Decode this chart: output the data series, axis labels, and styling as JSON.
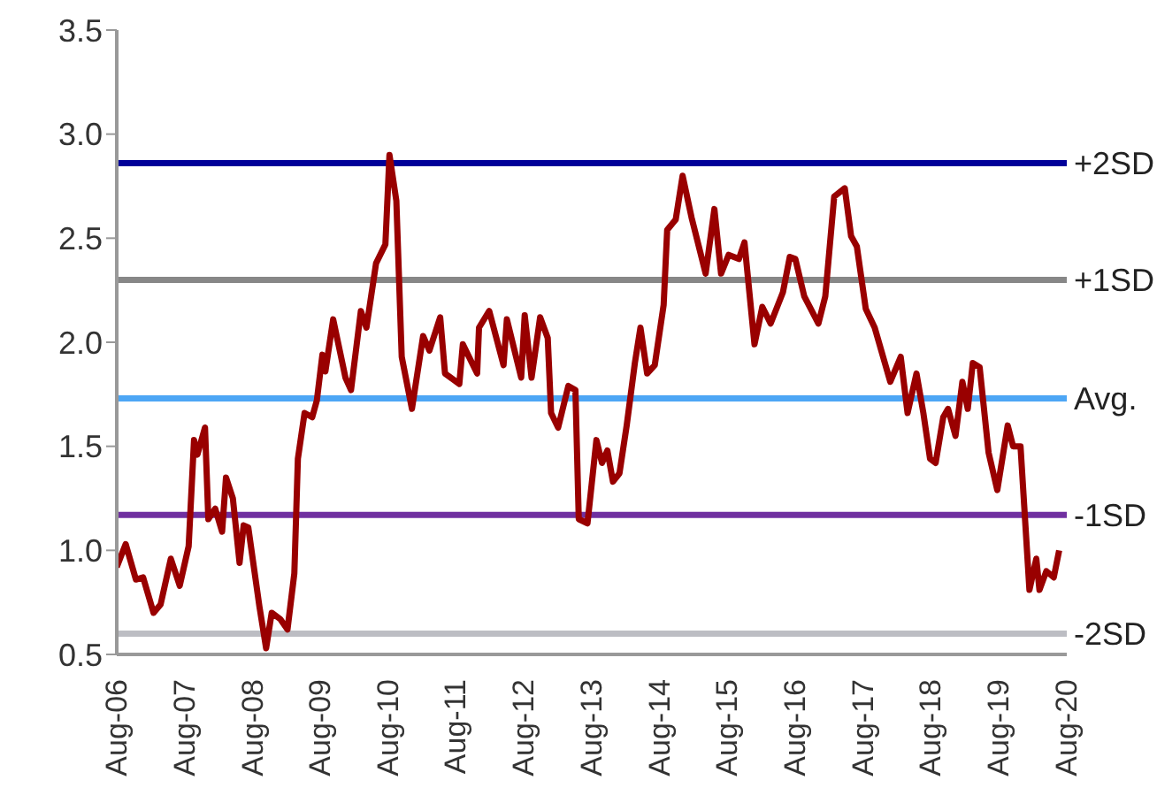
{
  "chart_data": {
    "type": "line",
    "x": [
      "2006-08-01",
      "2006-09-18",
      "2006-11-12",
      "2006-12-21",
      "2007-02-15",
      "2007-03-25",
      "2007-05-19",
      "2007-07-06",
      "2007-08-23",
      "2007-09-21",
      "2007-10-09",
      "2007-11-19",
      "2007-12-07",
      "2008-01-13",
      "2008-02-19",
      "2008-03-11",
      "2008-04-17",
      "2008-05-23",
      "2008-06-14",
      "2008-07-09",
      "2008-09-07",
      "2008-10-13",
      "2008-11-12",
      "2008-12-28",
      "2009-02-05",
      "2009-03-14",
      "2009-04-02",
      "2009-05-08",
      "2009-06-18",
      "2009-07-13",
      "2009-08-12",
      "2009-08-28",
      "2009-10-09",
      "2009-12-14",
      "2010-01-13",
      "2010-03-07",
      "2010-04-06",
      "2010-05-28",
      "2010-07-17",
      "2010-08-08",
      "2010-09-14",
      "2010-10-13",
      "2010-12-07",
      "2011-02-05",
      "2011-03-11",
      "2011-05-08",
      "2011-06-03",
      "2011-08-19",
      "2011-09-07",
      "2011-11-23",
      "2011-12-03",
      "2012-01-27",
      "2012-04-13",
      "2012-05-01",
      "2012-07-17",
      "2012-08-05",
      "2012-09-11",
      "2012-10-27",
      "2012-12-07",
      "2012-12-25",
      "2013-02-01",
      "2013-03-28",
      "2013-05-05",
      "2013-05-23",
      "2013-07-09",
      "2013-08-26",
      "2013-09-25",
      "2013-10-24",
      "2013-11-23",
      "2013-12-28",
      "2014-02-05",
      "2014-03-21",
      "2014-04-20",
      "2014-05-26",
      "2014-07-06",
      "2014-08-23",
      "2014-09-11",
      "2014-10-27",
      "2014-12-03",
      "2015-01-20",
      "2015-04-06",
      "2015-05-23",
      "2015-06-28",
      "2015-08-08",
      "2015-10-02",
      "2015-11-01",
      "2015-12-25",
      "2016-02-05",
      "2016-03-21",
      "2016-05-26",
      "2016-07-02",
      "2016-08-01",
      "2016-09-18",
      "2016-12-03",
      "2017-01-09",
      "2017-02-26",
      "2017-04-24",
      "2017-05-28",
      "2017-06-28",
      "2017-08-15",
      "2017-10-02",
      "2017-12-25",
      "2018-02-19",
      "2018-03-28",
      "2018-05-15",
      "2018-06-21",
      "2018-07-27",
      "2018-08-26",
      "2018-10-06",
      "2018-11-01",
      "2018-12-11",
      "2019-01-17",
      "2019-02-15",
      "2019-03-14",
      "2019-04-20",
      "2019-06-07",
      "2019-07-24",
      "2019-09-18",
      "2019-10-17",
      "2019-11-26",
      "2020-01-13",
      "2020-02-19",
      "2020-03-07",
      "2020-04-13",
      "2020-05-23",
      "2020-06-21"
    ],
    "series": [
      {
        "color": "#990000",
        "values": [
          0.92,
          1.03,
          0.86,
          0.87,
          0.7,
          0.74,
          0.96,
          0.83,
          1.02,
          1.53,
          1.46,
          1.59,
          1.15,
          1.2,
          1.09,
          1.35,
          1.25,
          0.94,
          1.12,
          1.11,
          0.73,
          0.53,
          0.7,
          0.67,
          0.62,
          0.89,
          1.44,
          1.66,
          1.64,
          1.72,
          1.94,
          1.86,
          2.11,
          1.83,
          1.77,
          2.15,
          2.07,
          2.38,
          2.47,
          2.9,
          2.68,
          1.93,
          1.68,
          2.03,
          1.96,
          2.12,
          1.85,
          1.8,
          1.99,
          1.85,
          2.07,
          2.15,
          1.89,
          2.11,
          1.83,
          2.13,
          1.83,
          2.12,
          2.02,
          1.66,
          1.59,
          1.79,
          1.77,
          1.15,
          1.13,
          1.53,
          1.42,
          1.48,
          1.33,
          1.37,
          1.6,
          1.9,
          2.07,
          1.85,
          1.89,
          2.18,
          2.54,
          2.59,
          2.8,
          2.6,
          2.33,
          2.64,
          2.33,
          2.42,
          2.4,
          2.48,
          1.99,
          2.17,
          2.09,
          2.24,
          2.41,
          2.4,
          2.22,
          2.09,
          2.22,
          2.7,
          2.74,
          2.51,
          2.46,
          2.16,
          2.07,
          1.81,
          1.93,
          1.66,
          1.85,
          1.66,
          1.44,
          1.42,
          1.64,
          1.68,
          1.55,
          1.81,
          1.68,
          1.9,
          1.88,
          1.47,
          1.29,
          1.6,
          1.5,
          1.5,
          0.81,
          0.96,
          0.81,
          0.9,
          0.87,
          1.0
        ]
      }
    ],
    "xlim": [
      "2006-08-01",
      "2020-08-01"
    ],
    "xticks": [
      {
        "value": "2006-08-01",
        "label": "Aug-06"
      },
      {
        "value": "2007-08-01",
        "label": "Aug-07"
      },
      {
        "value": "2008-08-01",
        "label": "Aug-08"
      },
      {
        "value": "2009-08-01",
        "label": "Aug-09"
      },
      {
        "value": "2010-08-01",
        "label": "Aug-10"
      },
      {
        "value": "2011-08-01",
        "label": "Aug-11"
      },
      {
        "value": "2012-08-01",
        "label": "Aug-12"
      },
      {
        "value": "2013-08-01",
        "label": "Aug-13"
      },
      {
        "value": "2014-08-01",
        "label": "Aug-14"
      },
      {
        "value": "2015-08-01",
        "label": "Aug-15"
      },
      {
        "value": "2016-08-01",
        "label": "Aug-16"
      },
      {
        "value": "2017-08-01",
        "label": "Aug-17"
      },
      {
        "value": "2018-08-01",
        "label": "Aug-18"
      },
      {
        "value": "2019-08-01",
        "label": "Aug-19"
      },
      {
        "value": "2020-08-01",
        "label": "Aug-20"
      }
    ],
    "ylim": [
      0.5,
      3.5
    ],
    "yticks": [
      0.5,
      {
        "value": 1,
        "label": "1.0"
      },
      1.5,
      {
        "value": 2,
        "label": "2.0"
      },
      2.5,
      {
        "value": 3,
        "label": "3.0"
      },
      3.5
    ],
    "ref_lines": [
      {
        "axis": "y",
        "value": 2.86,
        "label": "+2SD",
        "color": "#000099"
      },
      {
        "axis": "y",
        "value": 2.3,
        "label": "+1SD",
        "color": "#878787"
      },
      {
        "axis": "y",
        "value": 1.73,
        "label": "Avg.",
        "color": "#4da6f5"
      },
      {
        "axis": "y",
        "value": 1.17,
        "label": "-1SD",
        "color": "#7030a0"
      },
      {
        "axis": "y",
        "value": 0.6,
        "label": "-2SD",
        "color": "#bcbdc3"
      }
    ],
    "grid": false,
    "legend": false,
    "marker": "none",
    "line_style": "solid"
  }
}
